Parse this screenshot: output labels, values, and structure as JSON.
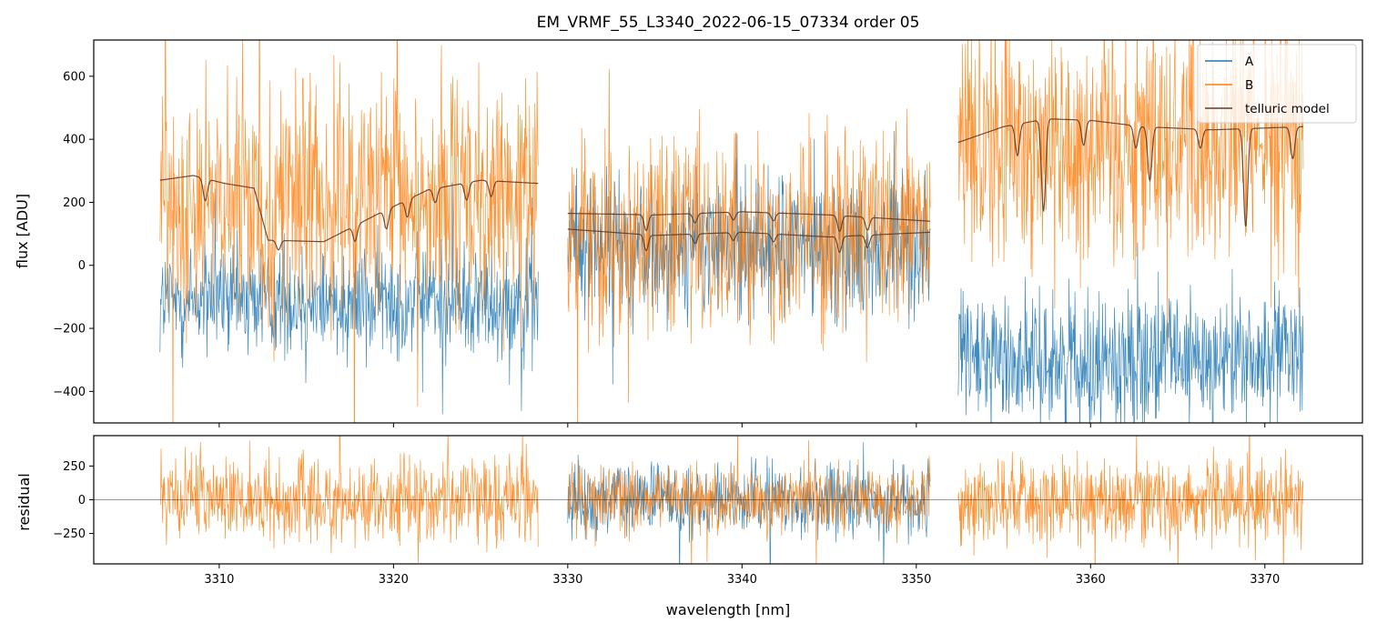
{
  "chart_data": [
    {
      "type": "line",
      "title": "EM_VRMF_55_L3340_2022-06-15_07334  order 05",
      "xlabel": "",
      "ylabel": "flux [ADU]",
      "xlim": [
        3302.8,
        3375.6
      ],
      "ylim": [
        -500,
        715
      ],
      "yticks": [
        -400,
        -200,
        0,
        200,
        400,
        600
      ],
      "ytick_labels": [
        "−400",
        "−200",
        "0",
        "200",
        "400",
        "600"
      ],
      "legend": {
        "position": "top-right",
        "entries": [
          {
            "label": "A",
            "color": "#1f77b4"
          },
          {
            "label": "B",
            "color": "#ff7f0e"
          },
          {
            "label": "telluric model",
            "color": "#5a3d2b"
          }
        ]
      },
      "segments": [
        {
          "x_range": [
            3306.6,
            3328.3
          ],
          "A_mean": -110,
          "A_noise": 90,
          "B_mean": 200,
          "B_noise": 180
        },
        {
          "x_range": [
            3330.0,
            3350.8
          ],
          "A_mean": 60,
          "A_noise": 110,
          "B_mean": 110,
          "B_noise": 150
        },
        {
          "x_range": [
            3352.4,
            3372.2
          ],
          "A_mean": -300,
          "A_noise": 100,
          "B_mean": 400,
          "B_noise": 200
        }
      ],
      "telluric_model": {
        "upper": [
          {
            "x_range": [
              3306.6,
              3328.3
            ],
            "points": [
              [
                3306.6,
                270
              ],
              [
                3308.5,
                285
              ],
              [
                3310.3,
                260
              ],
              [
                3312.0,
                245
              ],
              [
                3312.8,
                80
              ],
              [
                3316.0,
                75
              ],
              [
                3319.0,
                160
              ],
              [
                3322.0,
                240
              ],
              [
                3325.0,
                270
              ],
              [
                3328.3,
                260
              ]
            ]
          },
          {
            "x_range": [
              3330.0,
              3350.8
            ],
            "points": [
              [
                3330.0,
                165
              ],
              [
                3335.0,
                160
              ],
              [
                3340.0,
                170
              ],
              [
                3345.0,
                160
              ],
              [
                3350.8,
                140
              ]
            ]
          },
          {
            "x_range": [
              3352.4,
              3372.2
            ],
            "points": [
              [
                3352.4,
                390
              ],
              [
                3355.0,
                440
              ],
              [
                3357.5,
                465
              ],
              [
                3360.0,
                460
              ],
              [
                3363.0,
                440
              ],
              [
                3367.0,
                430
              ],
              [
                3372.2,
                440
              ]
            ]
          }
        ],
        "lower": [
          {
            "x_range": [
              3330.0,
              3350.8
            ],
            "points": [
              [
                3330.0,
                115
              ],
              [
                3335.0,
                95
              ],
              [
                3340.0,
                105
              ],
              [
                3345.0,
                90
              ],
              [
                3350.8,
                105
              ]
            ]
          }
        ],
        "absorption_lines": [
          {
            "x": 3309.2,
            "depth": 70
          },
          {
            "x": 3313.4,
            "depth": 30
          },
          {
            "x": 3317.8,
            "depth": 50
          },
          {
            "x": 3319.6,
            "depth": 60
          },
          {
            "x": 3320.8,
            "depth": 55
          },
          {
            "x": 3322.4,
            "depth": 45
          },
          {
            "x": 3324.2,
            "depth": 55
          },
          {
            "x": 3325.6,
            "depth": 50
          },
          {
            "x": 3334.5,
            "depth": 50
          },
          {
            "x": 3337.3,
            "depth": 30
          },
          {
            "x": 3339.5,
            "depth": 25
          },
          {
            "x": 3341.8,
            "depth": 25
          },
          {
            "x": 3345.6,
            "depth": 50
          },
          {
            "x": 3347.2,
            "depth": 40
          },
          {
            "x": 3355.8,
            "depth": 100
          },
          {
            "x": 3357.3,
            "depth": 290
          },
          {
            "x": 3359.6,
            "depth": 80
          },
          {
            "x": 3362.6,
            "depth": 70
          },
          {
            "x": 3363.4,
            "depth": 170
          },
          {
            "x": 3366.3,
            "depth": 60
          },
          {
            "x": 3368.9,
            "depth": 310
          },
          {
            "x": 3371.6,
            "depth": 100
          }
        ]
      }
    },
    {
      "type": "line",
      "title": "",
      "xlabel": "wavelength [nm]",
      "ylabel": "residual",
      "xlim": [
        3302.8,
        3375.6
      ],
      "ylim": [
        -475,
        475
      ],
      "xticks": [
        3310,
        3320,
        3330,
        3340,
        3350,
        3360,
        3370
      ],
      "xtick_labels": [
        "3310",
        "3320",
        "3330",
        "3340",
        "3350",
        "3360",
        "3370"
      ],
      "yticks": [
        -250,
        0,
        250
      ],
      "ytick_labels": [
        "−250",
        "0",
        "250"
      ],
      "zero_line": true,
      "segments": [
        {
          "x_range": [
            3306.6,
            3328.3
          ],
          "A_noise": 0,
          "B_noise": 150
        },
        {
          "x_range": [
            3330.0,
            3350.8
          ],
          "A_noise": 130,
          "B_noise": 120
        },
        {
          "x_range": [
            3352.4,
            3372.2
          ],
          "A_noise": 0,
          "B_noise": 150
        }
      ]
    }
  ]
}
